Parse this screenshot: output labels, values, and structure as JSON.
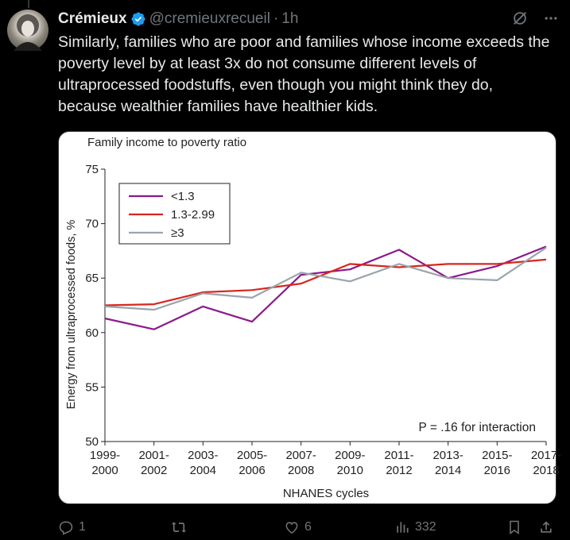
{
  "tweet": {
    "display_name": "Crémieux",
    "handle": "@cremieuxrecueil",
    "separator": "·",
    "time": "1h",
    "text": "Similarly, families who are poor and families whose income exceeds the poverty level by at least 3x do not consume different levels of ultraprocessed foodstuffs, even though you might think they do, because wealthier families have healthier kids."
  },
  "actions": {
    "replies": "1",
    "retweets": "",
    "likes": "6",
    "views": "332"
  },
  "colors": {
    "background": "#000000",
    "text": "#e7e9ea",
    "muted": "#71767b",
    "verified": "#1d9bf0"
  },
  "chart_data": {
    "type": "line",
    "title": "Family income to poverty ratio",
    "xlabel": "NHANES cycles",
    "ylabel": "Energy from ultraprocessed foods, %",
    "ylim": [
      50,
      75
    ],
    "yticks": [
      50,
      55,
      60,
      65,
      70,
      75
    ],
    "categories": [
      "1999-\n2000",
      "2001-\n2002",
      "2003-\n2004",
      "2005-\n2006",
      "2007-\n2008",
      "2009-\n2010",
      "2011-\n2012",
      "2013-\n2014",
      "2015-\n2016",
      "2017-\n2018"
    ],
    "annotation": "P = .16 for interaction",
    "legend_position": "top-left",
    "series": [
      {
        "name": "<1.3",
        "color": "#8b1a8b",
        "values": [
          61.3,
          60.3,
          62.4,
          61.0,
          65.3,
          65.8,
          67.6,
          65.0,
          66.1,
          67.9
        ]
      },
      {
        "name": "1.3-2.99",
        "color": "#d7261e",
        "values": [
          62.5,
          62.6,
          63.7,
          63.9,
          64.5,
          66.3,
          66.0,
          66.3,
          66.3,
          66.7
        ]
      },
      {
        "name": "≥3",
        "color": "#9aa4ab",
        "values": [
          62.4,
          62.1,
          63.6,
          63.2,
          65.5,
          64.7,
          66.3,
          65.0,
          64.8,
          67.8
        ]
      }
    ]
  }
}
